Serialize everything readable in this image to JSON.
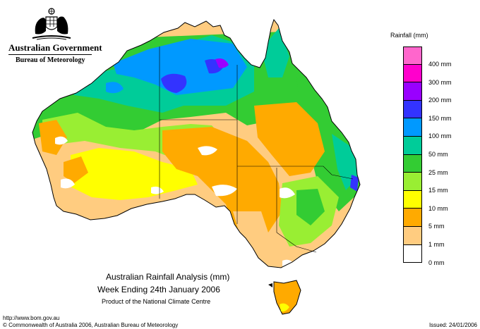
{
  "header": {
    "government": "Australian Government",
    "bureau": "Bureau of Meteorology"
  },
  "titles": {
    "line1": "Australian Rainfall Analysis (mm)",
    "line2": "Week Ending 24th January 2006",
    "line3": "Product of the National Climate Centre"
  },
  "footer": {
    "url": "http://www.bom.gov.au",
    "copyright": "© Commonwealth of Australia 2006, Australian Bureau of Meteorology",
    "issued": "Issued: 24/01/2006"
  },
  "legend": {
    "title": "Rainfall (mm)",
    "items": [
      {
        "label": "400 mm",
        "color": "#ff66cc"
      },
      {
        "label": "300 mm",
        "color": "#ff00cc"
      },
      {
        "label": "200 mm",
        "color": "#9900ff"
      },
      {
        "label": "150 mm",
        "color": "#3333ff"
      },
      {
        "label": "100 mm",
        "color": "#0099ff"
      },
      {
        "label": "50 mm",
        "color": "#00cc99"
      },
      {
        "label": "25 mm",
        "color": "#33cc33"
      },
      {
        "label": "15 mm",
        "color": "#99ee33"
      },
      {
        "label": "10 mm",
        "color": "#ffff00"
      },
      {
        "label": "5 mm",
        "color": "#ffaa00"
      },
      {
        "label": "1 mm",
        "color": "#ffcc80"
      },
      {
        "label": "0 mm",
        "color": "#ffffff"
      }
    ]
  },
  "map": {
    "colors": {
      "dry_1mm": "#ffcc80",
      "mm_5": "#ffaa00",
      "mm_10": "#ffff00",
      "mm_15": "#99ee33",
      "mm_25": "#33cc33",
      "mm_50": "#00cc99",
      "mm_100": "#0099ff",
      "mm_150": "#3333ff",
      "mm_200": "#9900ff",
      "none": "#ffffff"
    }
  }
}
